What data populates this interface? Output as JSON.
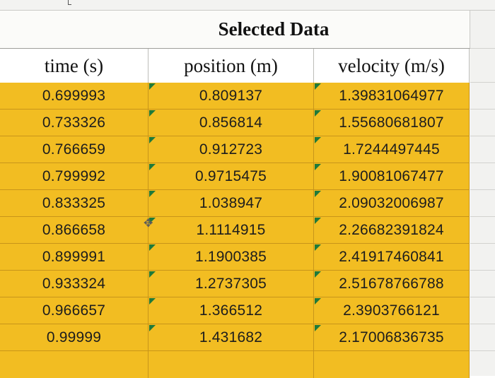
{
  "table": {
    "title": "Selected Data",
    "headers": [
      "time (s)",
      "position (m)",
      "velocity (m/s)"
    ],
    "rows": [
      [
        "0.699993",
        "0.809137",
        "1.39831064977"
      ],
      [
        "0.733326",
        "0.856814",
        "1.55680681807"
      ],
      [
        "0.766659",
        "0.912723",
        "1.7244497445"
      ],
      [
        "0.799992",
        "0.9715475",
        "1.90081067477"
      ],
      [
        "0.833325",
        "1.038947",
        "2.09032006987"
      ],
      [
        "0.866658",
        "1.1114915",
        "2.26682391824"
      ],
      [
        "0.899991",
        "1.1900385",
        "2.41917460841"
      ],
      [
        "0.933324",
        "1.2737305",
        "2.51678766788"
      ],
      [
        "0.966657",
        "1.366512",
        "2.3903766121"
      ],
      [
        "0.99999",
        "1.431682",
        "2.17006836735"
      ]
    ]
  },
  "colors": {
    "cell_fill": "#f2bd22",
    "number_as_text_marker": "#1f7a3a"
  },
  "icons": {
    "pointer": "cross-cursor-icon"
  }
}
